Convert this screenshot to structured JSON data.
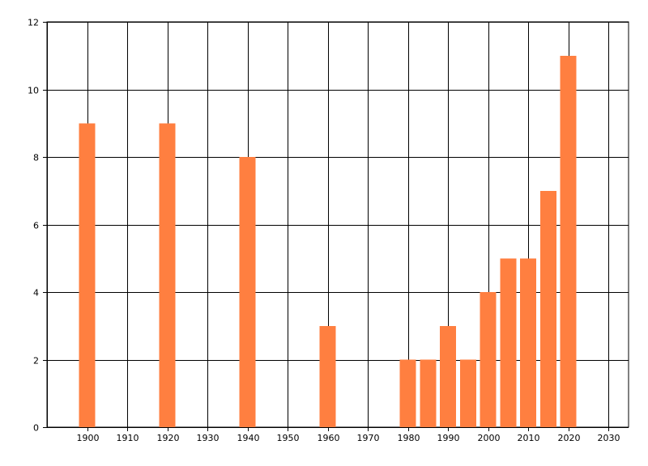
{
  "chart_data": {
    "type": "bar",
    "title": "",
    "xlabel": "",
    "ylabel": "",
    "x": [
      1900,
      1920,
      1940,
      1960,
      1980,
      1985,
      1990,
      1995,
      2000,
      2005,
      2010,
      2015,
      2020
    ],
    "values": [
      9,
      9,
      8,
      3,
      2,
      2,
      3,
      2,
      4,
      5,
      5,
      7,
      11
    ],
    "xlim": [
      1890,
      2035
    ],
    "ylim": [
      0,
      12
    ],
    "xticks": [
      1900,
      1910,
      1920,
      1930,
      1940,
      1950,
      1960,
      1970,
      1980,
      1990,
      2000,
      2010,
      2020,
      2030
    ],
    "yticks": [
      0,
      2,
      4,
      6,
      8,
      10,
      12
    ],
    "grid": true,
    "legend": "none",
    "bar_color": "#FF7F40"
  }
}
